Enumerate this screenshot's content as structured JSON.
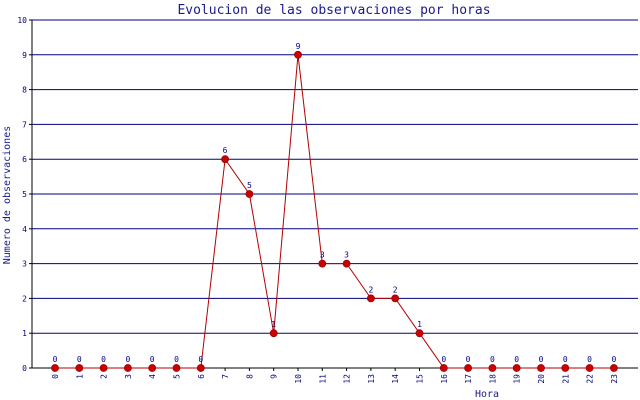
{
  "colors": {
    "grid": "#000080",
    "axis": "#000000",
    "line": "#b30000",
    "marker": "#cc0000",
    "text": "#1a1a8c",
    "background": "#ffffff"
  },
  "chart_data": {
    "type": "line",
    "title": "Evolucion de las observaciones por horas",
    "xlabel": "Hora",
    "ylabel": "Numero de observaciones",
    "x": [
      "0",
      "1",
      "2",
      "3",
      "4",
      "5",
      "6",
      "7",
      "8",
      "9",
      "10",
      "11",
      "12",
      "13",
      "14",
      "15",
      "16",
      "17",
      "18",
      "19",
      "20",
      "21",
      "22",
      "23"
    ],
    "series": [
      {
        "values": [
          0,
          0,
          0,
          0,
          0,
          0,
          0,
          6,
          5,
          1,
          9,
          3,
          3,
          2,
          2,
          1,
          0,
          0,
          0,
          0,
          0,
          0,
          0,
          0
        ]
      }
    ],
    "yticks": [
      "0",
      "1",
      "2",
      "3",
      "4",
      "5",
      "6",
      "7",
      "8",
      "9",
      "10"
    ],
    "ylim": [
      0,
      10
    ],
    "grid": true,
    "legend": "none"
  }
}
